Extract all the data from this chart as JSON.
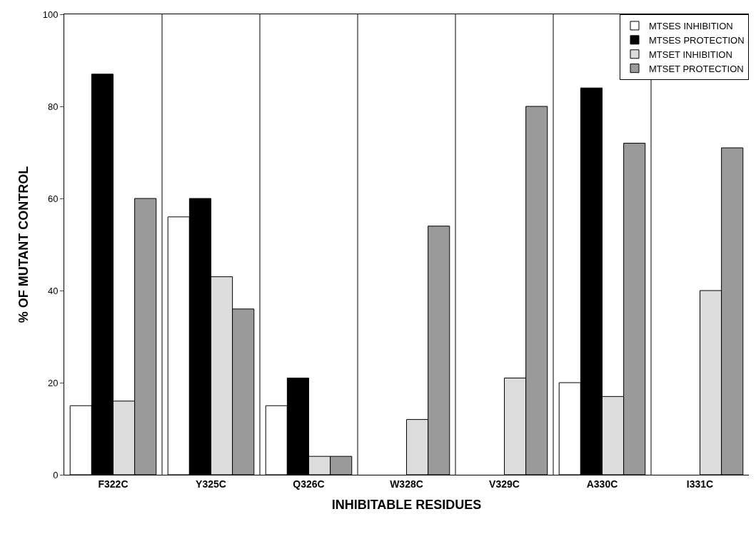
{
  "chart_data": {
    "type": "bar",
    "xlabel": "INHIBITABLE RESIDUES",
    "ylabel": "% OF MUTANT CONTROL",
    "categories": [
      "F322C",
      "Y325C",
      "Q326C",
      "W328C",
      "V329C",
      "A330C",
      "I331C"
    ],
    "series": [
      {
        "name": "MTSES INHIBITION",
        "color": "#ffffff",
        "values": [
          15,
          56,
          15,
          null,
          null,
          20,
          null
        ]
      },
      {
        "name": "MTSES PROTECTION",
        "color": "#000000",
        "values": [
          87,
          60,
          21,
          null,
          null,
          84,
          null
        ]
      },
      {
        "name": "MTSET INHIBITION",
        "color": "#dcdcdc",
        "values": [
          16,
          43,
          4,
          12,
          21,
          17,
          40
        ]
      },
      {
        "name": "MTSET PROTECTION",
        "color": "#9a9a9a",
        "values": [
          60,
          36,
          4,
          54,
          80,
          72,
          71
        ]
      }
    ],
    "ylim": [
      0,
      100
    ],
    "yticks": [
      0,
      20,
      40,
      60,
      80,
      100
    ],
    "grid": "x",
    "legend": "top right"
  }
}
